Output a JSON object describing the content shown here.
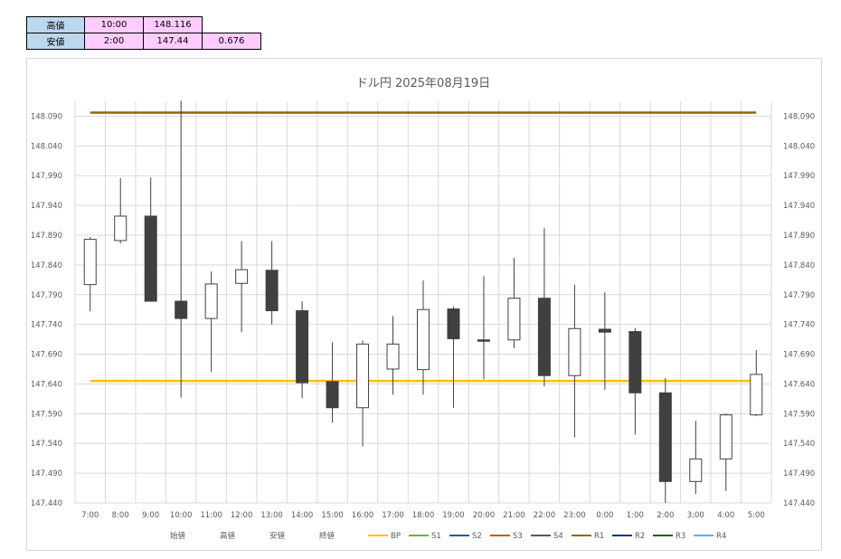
{
  "summary": {
    "rows": [
      {
        "label": "高値",
        "time": "10:00",
        "value": "148.116",
        "extra": ""
      },
      {
        "label": "安値",
        "time": "2:00",
        "value": "147.44",
        "extra": "0.676"
      }
    ]
  },
  "chart_data": {
    "type": "candlestick",
    "title": "ドル円  2025年08月19日",
    "ylim": [
      147.44,
      148.115
    ],
    "yticks": [
      "148.090",
      "148.040",
      "147.990",
      "147.940",
      "147.890",
      "147.840",
      "147.790",
      "147.740",
      "147.690",
      "147.640",
      "147.590",
      "147.540",
      "147.490",
      "147.440"
    ],
    "categories": [
      "7:00",
      "8:00",
      "9:00",
      "10:00",
      "11:00",
      "12:00",
      "13:00",
      "14:00",
      "15:00",
      "16:00",
      "17:00",
      "18:00",
      "19:00",
      "20:00",
      "21:00",
      "22:00",
      "23:00",
      "0:00",
      "1:00",
      "2:00",
      "3:00",
      "4:00",
      "5:00"
    ],
    "ohlc": [
      {
        "open": 147.807,
        "high": 147.887,
        "low": 147.762,
        "close": 147.883
      },
      {
        "open": 147.881,
        "high": 147.986,
        "low": 147.876,
        "close": 147.922
      },
      {
        "open": 147.922,
        "high": 147.987,
        "low": 147.779,
        "close": 147.779
      },
      {
        "open": 147.779,
        "high": 148.116,
        "low": 147.617,
        "close": 147.75
      },
      {
        "open": 147.75,
        "high": 147.829,
        "low": 147.66,
        "close": 147.808
      },
      {
        "open": 147.809,
        "high": 147.88,
        "low": 147.727,
        "close": 147.832
      },
      {
        "open": 147.831,
        "high": 147.88,
        "low": 147.74,
        "close": 147.763
      },
      {
        "open": 147.763,
        "high": 147.779,
        "low": 147.616,
        "close": 147.642
      },
      {
        "open": 147.644,
        "high": 147.71,
        "low": 147.575,
        "close": 147.6
      },
      {
        "open": 147.6,
        "high": 147.713,
        "low": 147.535,
        "close": 147.707
      },
      {
        "open": 147.665,
        "high": 147.754,
        "low": 147.622,
        "close": 147.707
      },
      {
        "open": 147.664,
        "high": 147.814,
        "low": 147.622,
        "close": 147.765
      },
      {
        "open": 147.766,
        "high": 147.77,
        "low": 147.6,
        "close": 147.716
      },
      {
        "open": 147.714,
        "high": 147.821,
        "low": 147.648,
        "close": 147.713
      },
      {
        "open": 147.714,
        "high": 147.852,
        "low": 147.7,
        "close": 147.784
      },
      {
        "open": 147.784,
        "high": 147.902,
        "low": 147.636,
        "close": 147.654
      },
      {
        "open": 147.654,
        "high": 147.807,
        "low": 147.55,
        "close": 147.733
      },
      {
        "open": 147.732,
        "high": 147.794,
        "low": 147.63,
        "close": 147.727
      },
      {
        "open": 147.728,
        "high": 147.734,
        "low": 147.555,
        "close": 147.625
      },
      {
        "open": 147.625,
        "high": 147.65,
        "low": 147.44,
        "close": 147.476
      },
      {
        "open": 147.476,
        "high": 147.578,
        "low": 147.455,
        "close": 147.514
      },
      {
        "open": 147.514,
        "high": 147.59,
        "low": 147.46,
        "close": 147.588
      },
      {
        "open": 147.588,
        "high": 147.697,
        "low": 147.586,
        "close": 147.656
      }
    ],
    "lines": [
      {
        "name": "R1",
        "value": 148.096,
        "color": "#8b6a00"
      },
      {
        "name": "BP",
        "value": 147.645,
        "color": "#ffc000"
      }
    ],
    "legend_items": [
      {
        "name": "始値",
        "color": ""
      },
      {
        "name": "高値",
        "color": ""
      },
      {
        "name": "安値",
        "color": ""
      },
      {
        "name": "終値",
        "color": ""
      },
      {
        "name": "BP",
        "color": "#ffc000"
      },
      {
        "name": "S1",
        "color": "#70ad47"
      },
      {
        "name": "S2",
        "color": "#255e91"
      },
      {
        "name": "S3",
        "color": "#c55a11"
      },
      {
        "name": "S4",
        "color": "#595959"
      },
      {
        "name": "R1",
        "color": "#8b6a00"
      },
      {
        "name": "R2",
        "color": "#203864"
      },
      {
        "name": "R3",
        "color": "#375623"
      },
      {
        "name": "R4",
        "color": "#6fa8dc"
      }
    ],
    "colors": {
      "down": "#404040",
      "up": "#ffffff",
      "outline": "#404040",
      "wick": "#404040",
      "grid": "#d9d9d9"
    },
    "grid": true,
    "legend_position": "bottom"
  }
}
